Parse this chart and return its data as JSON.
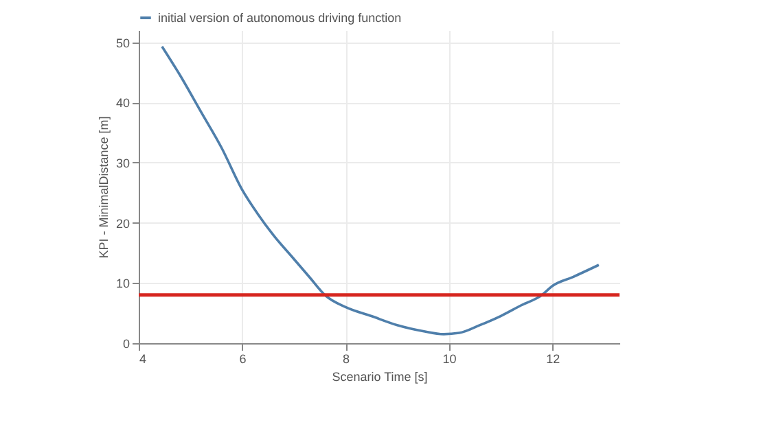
{
  "chart_data": {
    "type": "line",
    "xlabel": "Scenario Time [s]",
    "ylabel": "KPI - MinimalDistance [m]",
    "xlim": [
      4,
      13.3
    ],
    "xticks": [
      4,
      6,
      8,
      10,
      12
    ],
    "ylim": [
      0,
      52
    ],
    "yticks": [
      0,
      10,
      20,
      30,
      40,
      50
    ],
    "grid": true,
    "legend": "top left",
    "series": [
      {
        "name": "initial version of autonomous driving function",
        "color": "#4f7fab",
        "x": [
          4.45,
          4.8,
          5.2,
          5.6,
          6.0,
          6.3,
          6.6,
          7.0,
          7.3,
          7.6,
          8.0,
          8.5,
          9.0,
          9.5,
          9.9,
          10.2,
          10.6,
          11.0,
          11.4,
          11.8,
          12.0,
          12.4,
          12.9
        ],
        "values": [
          49.3,
          44.5,
          38.5,
          32.5,
          25.5,
          21.5,
          18,
          14,
          11,
          8,
          6,
          4.5,
          3,
          2,
          1.5,
          1.7,
          3,
          4.5,
          6.3,
          8,
          9.5,
          11,
          13
        ]
      }
    ],
    "ref_lines": [
      {
        "axis": "y",
        "value": 8,
        "color": "#d6261f"
      }
    ]
  }
}
